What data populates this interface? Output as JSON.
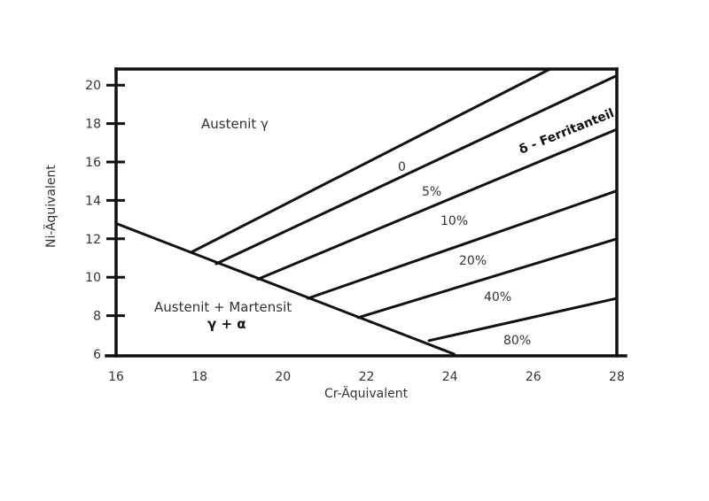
{
  "chart_data": {
    "type": "line",
    "xlabel": "Cr-Äquivalent",
    "ylabel": "Ni-Äquivalent",
    "xlim": [
      16,
      28
    ],
    "ylim": [
      6,
      21
    ],
    "x_ticks": [
      "16",
      "18",
      "20",
      "22",
      "24",
      "26",
      "28"
    ],
    "y_ticks": [
      "6",
      "8",
      "10",
      "12",
      "14",
      "16",
      "18",
      "20"
    ],
    "regions": {
      "austenit": {
        "label": "Austenit γ"
      },
      "mixed": {
        "label": "Austenit + Martensit",
        "symbol": "γ + α"
      },
      "ferrite": {
        "label": "δ - Ferritanteil"
      }
    },
    "boundary": {
      "x": [
        16,
        24.1
      ],
      "y": [
        12.8,
        6
      ]
    },
    "series": [
      {
        "name": "0",
        "x": [
          17.8,
          26.4
        ],
        "y": [
          11.3,
          21
        ]
      },
      {
        "name": "5%",
        "x": [
          18.4,
          28
        ],
        "y": [
          10.7,
          20.5
        ]
      },
      {
        "name": "10%",
        "x": [
          19.4,
          28
        ],
        "y": [
          9.9,
          17.7
        ]
      },
      {
        "name": "20%",
        "x": [
          20.6,
          28
        ],
        "y": [
          8.9,
          14.5
        ]
      },
      {
        "name": "40%",
        "x": [
          21.8,
          28
        ],
        "y": [
          7.9,
          12
        ]
      },
      {
        "name": "80%",
        "x": [
          23.5,
          28
        ],
        "y": [
          6.7,
          8.9
        ]
      }
    ]
  }
}
